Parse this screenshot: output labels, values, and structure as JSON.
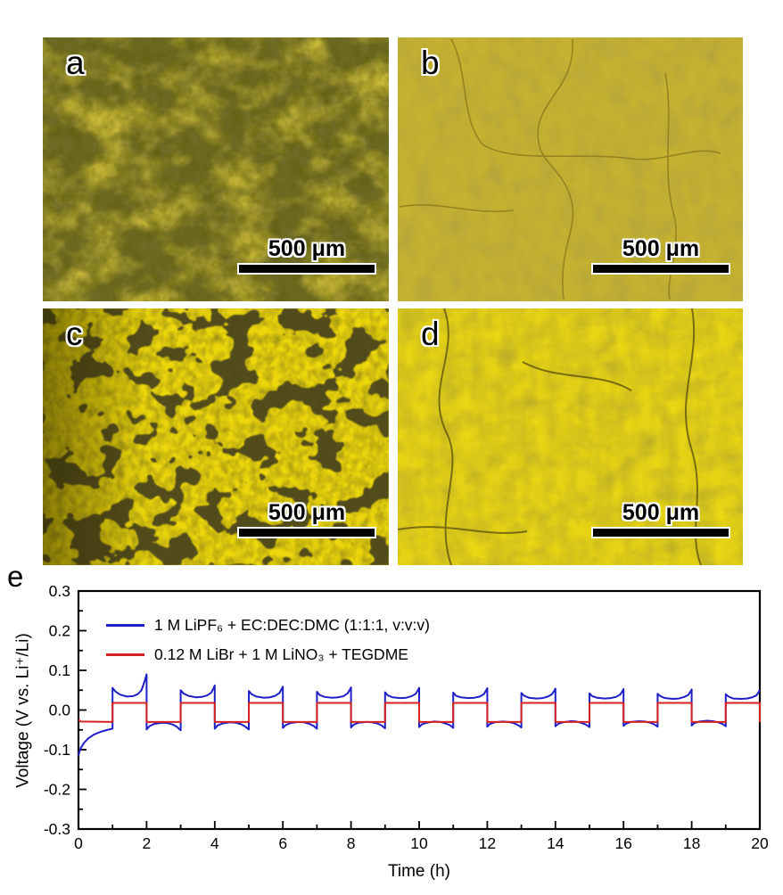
{
  "figure": {
    "panels": [
      {
        "label": "a",
        "scale_bar": "500 μm"
      },
      {
        "label": "b",
        "scale_bar": "500 μm"
      },
      {
        "label": "c",
        "scale_bar": "500 μm"
      },
      {
        "label": "d",
        "scale_bar": "500 μm"
      }
    ],
    "chart_panel_label": "e"
  },
  "chart_data": {
    "type": "line",
    "title": "",
    "xlabel": "Time (h)",
    "ylabel": "Voltage (V vs. Li⁺/Li)",
    "xlim": [
      0,
      20
    ],
    "ylim": [
      -0.3,
      0.3
    ],
    "x_ticks": [
      0,
      2,
      4,
      6,
      8,
      10,
      12,
      14,
      16,
      18,
      20
    ],
    "x_tick_labels": [
      "0",
      "2",
      "4",
      "6",
      "8",
      "10",
      "12",
      "14",
      "16",
      "18",
      "20"
    ],
    "x_minor_step": 1,
    "y_ticks": [
      0.3,
      0.2,
      0.1,
      0.0,
      -0.1,
      -0.2,
      -0.3
    ],
    "y_tick_labels": [
      "0.3",
      "0.2",
      "0.1",
      "0.0",
      "-0.1",
      "-0.2",
      "-0.3"
    ],
    "y_minor_step": 0.05,
    "grid": false,
    "legend_position": "top-left",
    "axis_color": "#000000",
    "series": [
      {
        "name": "1 M LiPF₆ + EC:DEC:DMC (1:1:1, v:v:v)",
        "color": "#1f1fc8",
        "points": [
          [
            0,
            -0.115
          ],
          [
            0.03,
            -0.104
          ],
          [
            0.08,
            -0.094
          ],
          [
            0.16,
            -0.083
          ],
          [
            0.28,
            -0.072
          ],
          [
            0.45,
            -0.062
          ],
          [
            0.65,
            -0.055
          ],
          [
            0.85,
            -0.05
          ],
          [
            1,
            -0.047
          ],
          [
            1,
            0.056
          ],
          [
            1.08,
            0.047
          ],
          [
            1.22,
            0.039
          ],
          [
            1.42,
            0.034
          ],
          [
            1.6,
            0.035
          ],
          [
            1.74,
            0.04
          ],
          [
            1.85,
            0.05
          ],
          [
            1.95,
            0.075
          ],
          [
            2,
            0.09
          ],
          [
            2,
            -0.049
          ],
          [
            2.08,
            -0.041
          ],
          [
            2.22,
            -0.035
          ],
          [
            2.45,
            -0.032
          ],
          [
            2.62,
            -0.033
          ],
          [
            2.78,
            -0.037
          ],
          [
            2.9,
            -0.043
          ],
          [
            2.97,
            -0.049
          ],
          [
            3,
            -0.051
          ],
          [
            3,
            0.05
          ],
          [
            3.08,
            0.042
          ],
          [
            3.22,
            0.036
          ],
          [
            3.45,
            0.032
          ],
          [
            3.62,
            0.033
          ],
          [
            3.78,
            0.037
          ],
          [
            3.9,
            0.044
          ],
          [
            3.97,
            0.056
          ],
          [
            4,
            0.062
          ],
          [
            4,
            -0.047
          ],
          [
            4.08,
            -0.039
          ],
          [
            4.22,
            -0.034
          ],
          [
            4.45,
            -0.031
          ],
          [
            4.62,
            -0.032
          ],
          [
            4.78,
            -0.036
          ],
          [
            4.9,
            -0.042
          ],
          [
            4.97,
            -0.047
          ],
          [
            5,
            -0.049
          ],
          [
            5,
            0.048
          ],
          [
            5.08,
            0.04
          ],
          [
            5.22,
            0.034
          ],
          [
            5.45,
            0.031
          ],
          [
            5.62,
            0.032
          ],
          [
            5.78,
            0.036
          ],
          [
            5.9,
            0.043
          ],
          [
            5.97,
            0.054
          ],
          [
            6,
            0.059
          ],
          [
            6,
            -0.045
          ],
          [
            6.08,
            -0.038
          ],
          [
            6.22,
            -0.033
          ],
          [
            6.45,
            -0.03
          ],
          [
            6.62,
            -0.031
          ],
          [
            6.78,
            -0.035
          ],
          [
            6.9,
            -0.04
          ],
          [
            6.97,
            -0.045
          ],
          [
            7,
            -0.047
          ],
          [
            7,
            0.046
          ],
          [
            7.08,
            0.038
          ],
          [
            7.22,
            0.033
          ],
          [
            7.45,
            0.031
          ],
          [
            7.62,
            0.032
          ],
          [
            7.78,
            0.035
          ],
          [
            7.9,
            0.042
          ],
          [
            7.97,
            0.052
          ],
          [
            8,
            0.057
          ],
          [
            8,
            -0.044
          ],
          [
            8.08,
            -0.037
          ],
          [
            8.22,
            -0.032
          ],
          [
            8.45,
            -0.03
          ],
          [
            8.62,
            -0.031
          ],
          [
            8.78,
            -0.034
          ],
          [
            8.9,
            -0.039
          ],
          [
            8.97,
            -0.044
          ],
          [
            9,
            -0.046
          ],
          [
            9,
            0.045
          ],
          [
            9.08,
            0.037
          ],
          [
            9.22,
            0.032
          ],
          [
            9.45,
            0.03
          ],
          [
            9.62,
            0.031
          ],
          [
            9.78,
            0.035
          ],
          [
            9.9,
            0.041
          ],
          [
            9.97,
            0.051
          ],
          [
            10,
            0.056
          ],
          [
            10,
            -0.043
          ],
          [
            10.08,
            -0.036
          ],
          [
            10.22,
            -0.032
          ],
          [
            10.45,
            -0.029
          ],
          [
            10.62,
            -0.03
          ],
          [
            10.78,
            -0.034
          ],
          [
            10.9,
            -0.038
          ],
          [
            10.97,
            -0.043
          ],
          [
            11,
            -0.045
          ],
          [
            11,
            0.044
          ],
          [
            11.08,
            0.036
          ],
          [
            11.22,
            0.032
          ],
          [
            11.45,
            0.03
          ],
          [
            11.62,
            0.031
          ],
          [
            11.78,
            0.034
          ],
          [
            11.9,
            0.04
          ],
          [
            11.97,
            0.05
          ],
          [
            12,
            0.055
          ],
          [
            12,
            -0.042
          ],
          [
            12.08,
            -0.035
          ],
          [
            12.22,
            -0.031
          ],
          [
            12.45,
            -0.029
          ],
          [
            12.62,
            -0.03
          ],
          [
            12.78,
            -0.033
          ],
          [
            12.9,
            -0.038
          ],
          [
            12.97,
            -0.042
          ],
          [
            13,
            -0.044
          ],
          [
            13,
            0.043
          ],
          [
            13.08,
            0.036
          ],
          [
            13.22,
            0.031
          ],
          [
            13.45,
            0.029
          ],
          [
            13.62,
            0.03
          ],
          [
            13.78,
            0.034
          ],
          [
            13.9,
            0.04
          ],
          [
            13.97,
            0.049
          ],
          [
            14,
            0.054
          ],
          [
            14,
            -0.041
          ],
          [
            14.08,
            -0.035
          ],
          [
            14.22,
            -0.031
          ],
          [
            14.45,
            -0.028
          ],
          [
            14.62,
            -0.029
          ],
          [
            14.78,
            -0.033
          ],
          [
            14.9,
            -0.037
          ],
          [
            14.97,
            -0.041
          ],
          [
            15,
            -0.043
          ],
          [
            15,
            0.042
          ],
          [
            15.08,
            0.035
          ],
          [
            15.22,
            0.031
          ],
          [
            15.45,
            0.029
          ],
          [
            15.62,
            0.03
          ],
          [
            15.78,
            0.033
          ],
          [
            15.9,
            0.039
          ],
          [
            15.97,
            0.048
          ],
          [
            16,
            0.053
          ],
          [
            16,
            -0.04
          ],
          [
            16.08,
            -0.034
          ],
          [
            16.22,
            -0.03
          ],
          [
            16.45,
            -0.028
          ],
          [
            16.62,
            -0.029
          ],
          [
            16.78,
            -0.032
          ],
          [
            16.9,
            -0.036
          ],
          [
            16.97,
            -0.04
          ],
          [
            17,
            -0.042
          ],
          [
            17,
            0.041
          ],
          [
            17.08,
            0.035
          ],
          [
            17.22,
            0.03
          ],
          [
            17.45,
            0.028
          ],
          [
            17.62,
            0.029
          ],
          [
            17.78,
            0.033
          ],
          [
            17.9,
            0.038
          ],
          [
            17.97,
            0.047
          ],
          [
            18,
            0.052
          ],
          [
            18,
            -0.039
          ],
          [
            18.08,
            -0.033
          ],
          [
            18.22,
            -0.029
          ],
          [
            18.45,
            -0.027
          ],
          [
            18.62,
            -0.028
          ],
          [
            18.78,
            -0.031
          ],
          [
            18.9,
            -0.035
          ],
          [
            18.97,
            -0.039
          ],
          [
            19,
            -0.041
          ],
          [
            19,
            0.04
          ],
          [
            19.08,
            0.034
          ],
          [
            19.22,
            0.029
          ],
          [
            19.45,
            0.028
          ],
          [
            19.62,
            0.029
          ],
          [
            19.78,
            0.032
          ],
          [
            19.9,
            0.037
          ],
          [
            19.97,
            0.046
          ],
          [
            20,
            0.051
          ]
        ]
      },
      {
        "name": "0.12 M LiBr + 1 M LiNO₃ + TEGDME",
        "color": "#d62222",
        "points": [
          [
            0,
            -0.024
          ],
          [
            0.06,
            -0.029
          ],
          [
            1,
            -0.03
          ],
          [
            1,
            0.018
          ],
          [
            2,
            0.018
          ],
          [
            2,
            -0.03
          ],
          [
            3,
            -0.03
          ],
          [
            3,
            0.018
          ],
          [
            4,
            0.018
          ],
          [
            4,
            -0.03
          ],
          [
            5,
            -0.03
          ],
          [
            5,
            0.018
          ],
          [
            6,
            0.018
          ],
          [
            6,
            -0.03
          ],
          [
            7,
            -0.03
          ],
          [
            7,
            0.018
          ],
          [
            8,
            0.018
          ],
          [
            8,
            -0.03
          ],
          [
            9,
            -0.03
          ],
          [
            9,
            0.018
          ],
          [
            10,
            0.018
          ],
          [
            10,
            -0.03
          ],
          [
            11,
            -0.03
          ],
          [
            11,
            0.018
          ],
          [
            12,
            0.018
          ],
          [
            12,
            -0.03
          ],
          [
            13,
            -0.03
          ],
          [
            13,
            0.018
          ],
          [
            14,
            0.018
          ],
          [
            14,
            -0.03
          ],
          [
            15,
            -0.03
          ],
          [
            15,
            0.018
          ],
          [
            16,
            0.018
          ],
          [
            16,
            -0.03
          ],
          [
            17,
            -0.03
          ],
          [
            17,
            0.018
          ],
          [
            18,
            0.018
          ],
          [
            18,
            -0.03
          ],
          [
            19,
            -0.03
          ],
          [
            19,
            0.018
          ],
          [
            20,
            0.018
          ],
          [
            20,
            -0.031
          ]
        ]
      }
    ]
  }
}
